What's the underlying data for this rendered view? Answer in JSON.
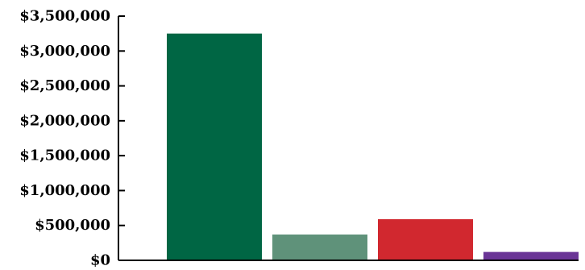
{
  "chart_data": {
    "type": "bar",
    "title": "",
    "xlabel": "",
    "ylabel": "",
    "categories": [
      "",
      "",
      "",
      ""
    ],
    "values": [
      3250000,
      370000,
      590000,
      120000
    ],
    "colors": [
      "#006644",
      "#5f927a",
      "#d1282f",
      "#6a3596"
    ],
    "ylim": [
      0,
      3500000
    ],
    "yticks": [
      0,
      500000,
      1000000,
      1500000,
      2000000,
      2500000,
      3000000,
      3500000
    ],
    "ytick_labels": [
      "$0",
      "$500,000",
      "$1,000,000",
      "$1,500,000",
      "$2,000,000",
      "$2,500,000",
      "$3,000,000",
      "$3,500,000"
    ],
    "grid": false,
    "legend": "none"
  }
}
